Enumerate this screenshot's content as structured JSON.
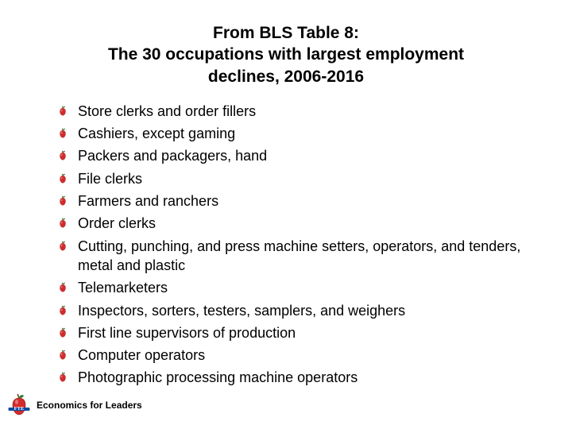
{
  "title": {
    "line1": "From BLS Table 8:",
    "line2": "The 30 occupations with largest employment",
    "line3": "declines,  2006-2016",
    "fontsize": 21,
    "color": "#000000"
  },
  "bullet": {
    "apple_fill": "#d32b2b",
    "apple_highlight": "#ffffff",
    "apple_stroke": "#8b1a1a",
    "leaf_fill": "#2e7d32",
    "stem_fill": "#5d3a1a"
  },
  "items": [
    "Store clerks and order fillers",
    "Cashiers, except gaming",
    "Packers and packagers, hand",
    "File clerks",
    "Farmers and ranchers",
    "Order clerks",
    "Cutting, punching, and press machine setters, operators, and tenders, metal and plastic",
    "Telemarketers",
    "Inspectors, sorters, testers, samplers, and weighers",
    "First line supervisors of production",
    "Computer operators",
    "Photographic processing machine operators"
  ],
  "item_style": {
    "fontsize": 18,
    "color": "#000000"
  },
  "footer": {
    "text": "Economics for Leaders",
    "fontsize": 12,
    "color": "#000000"
  },
  "logo": {
    "apple_fill": "#d32b2b",
    "apple_stroke": "#8b1a1a",
    "leaf_fill": "#2e7d32",
    "stem_fill": "#5d3a1a",
    "banner_fill": "#0b4aa2",
    "banner_text_fill": "#ffffff",
    "banner_text": "FTE"
  },
  "background_color": "#ffffff"
}
